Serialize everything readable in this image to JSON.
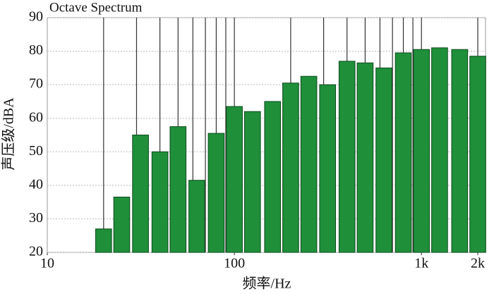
{
  "chart_data": {
    "type": "bar",
    "title": "Octave Spectrum",
    "x_label": "频率/Hz",
    "y_label": "声压级/dBA",
    "x": [
      20,
      25,
      31.5,
      40,
      50,
      63,
      80,
      100,
      125,
      160,
      200,
      250,
      315,
      400,
      500,
      630,
      800,
      1000,
      1250,
      1600,
      2000
    ],
    "values": [
      27,
      36.5,
      55,
      50,
      57.5,
      41.5,
      55.5,
      63.5,
      62,
      65,
      70.5,
      72.5,
      70,
      77,
      76.5,
      75,
      79.5,
      80.5,
      81,
      80.5,
      78.5
    ],
    "color": "#1f8f3a",
    "xscale": "log",
    "xlim": [
      10,
      2200
    ],
    "xticks": [
      10,
      100,
      {
        "value": 1000,
        "label": "1k"
      },
      {
        "value": 2000,
        "label": "2k"
      }
    ],
    "xgrid": [
      20,
      30,
      40,
      50,
      60,
      70,
      80,
      90,
      100,
      200,
      300,
      400,
      500,
      600,
      700,
      800,
      900,
      1000,
      2000
    ],
    "ylim": [
      20,
      90
    ],
    "yticks": [
      20,
      30,
      40,
      50,
      60,
      70,
      80,
      90
    ],
    "grid": true
  }
}
